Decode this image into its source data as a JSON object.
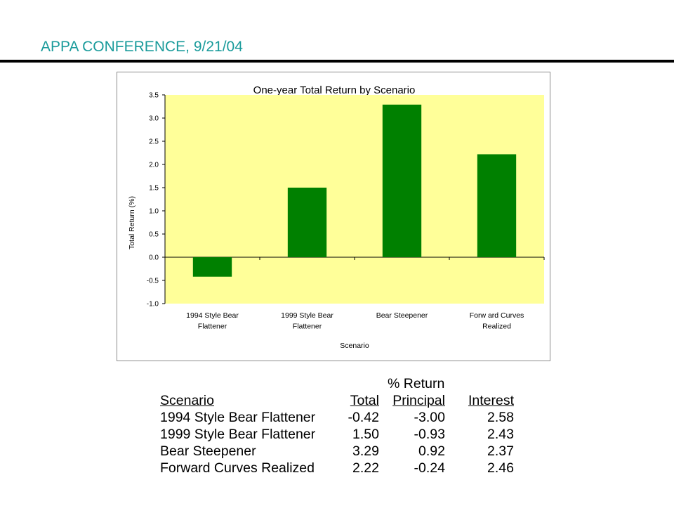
{
  "slide": {
    "title": "APPA CONFERENCE, 9/21/04"
  },
  "colors": {
    "title": "#1a9b9b",
    "plot_background": "#ffff99",
    "bar": "#008000"
  },
  "chart_data": {
    "type": "bar",
    "title": "One-year Total Return by Scenario",
    "xlabel": "Scenario",
    "ylabel": "Total Return (%)",
    "categories": [
      [
        "1994 Style Bear",
        "Flattener"
      ],
      [
        "1999 Style Bear",
        "Flattener"
      ],
      [
        "Bear Steepener"
      ],
      [
        "Forw ard Curves",
        "Realized"
      ]
    ],
    "values": [
      -0.42,
      1.5,
      3.29,
      2.22
    ],
    "ylim": [
      -1.0,
      3.5
    ],
    "yticks": [
      "3.5",
      "3.0",
      "2.5",
      "2.0",
      "1.5",
      "1.0",
      "0.5",
      "0.0",
      "-0.5",
      "-1.0"
    ],
    "grid": false,
    "legend": "none"
  },
  "table": {
    "group_header": "% Return",
    "headers": {
      "scenario": "Scenario",
      "total": "Total",
      "principal": "Principal",
      "interest": "Interest"
    },
    "rows": [
      {
        "scenario": "1994 Style Bear Flattener",
        "total": "-0.42",
        "principal": "-3.00",
        "interest": "2.58"
      },
      {
        "scenario": "1999 Style Bear Flattener",
        "total": "1.50",
        "principal": "-0.93",
        "interest": "2.43"
      },
      {
        "scenario": "Bear Steepener",
        "total": "3.29",
        "principal": "0.92",
        "interest": "2.37"
      },
      {
        "scenario": "Forward Curves Realized",
        "total": "2.22",
        "principal": "-0.24",
        "interest": "2.46"
      }
    ]
  }
}
